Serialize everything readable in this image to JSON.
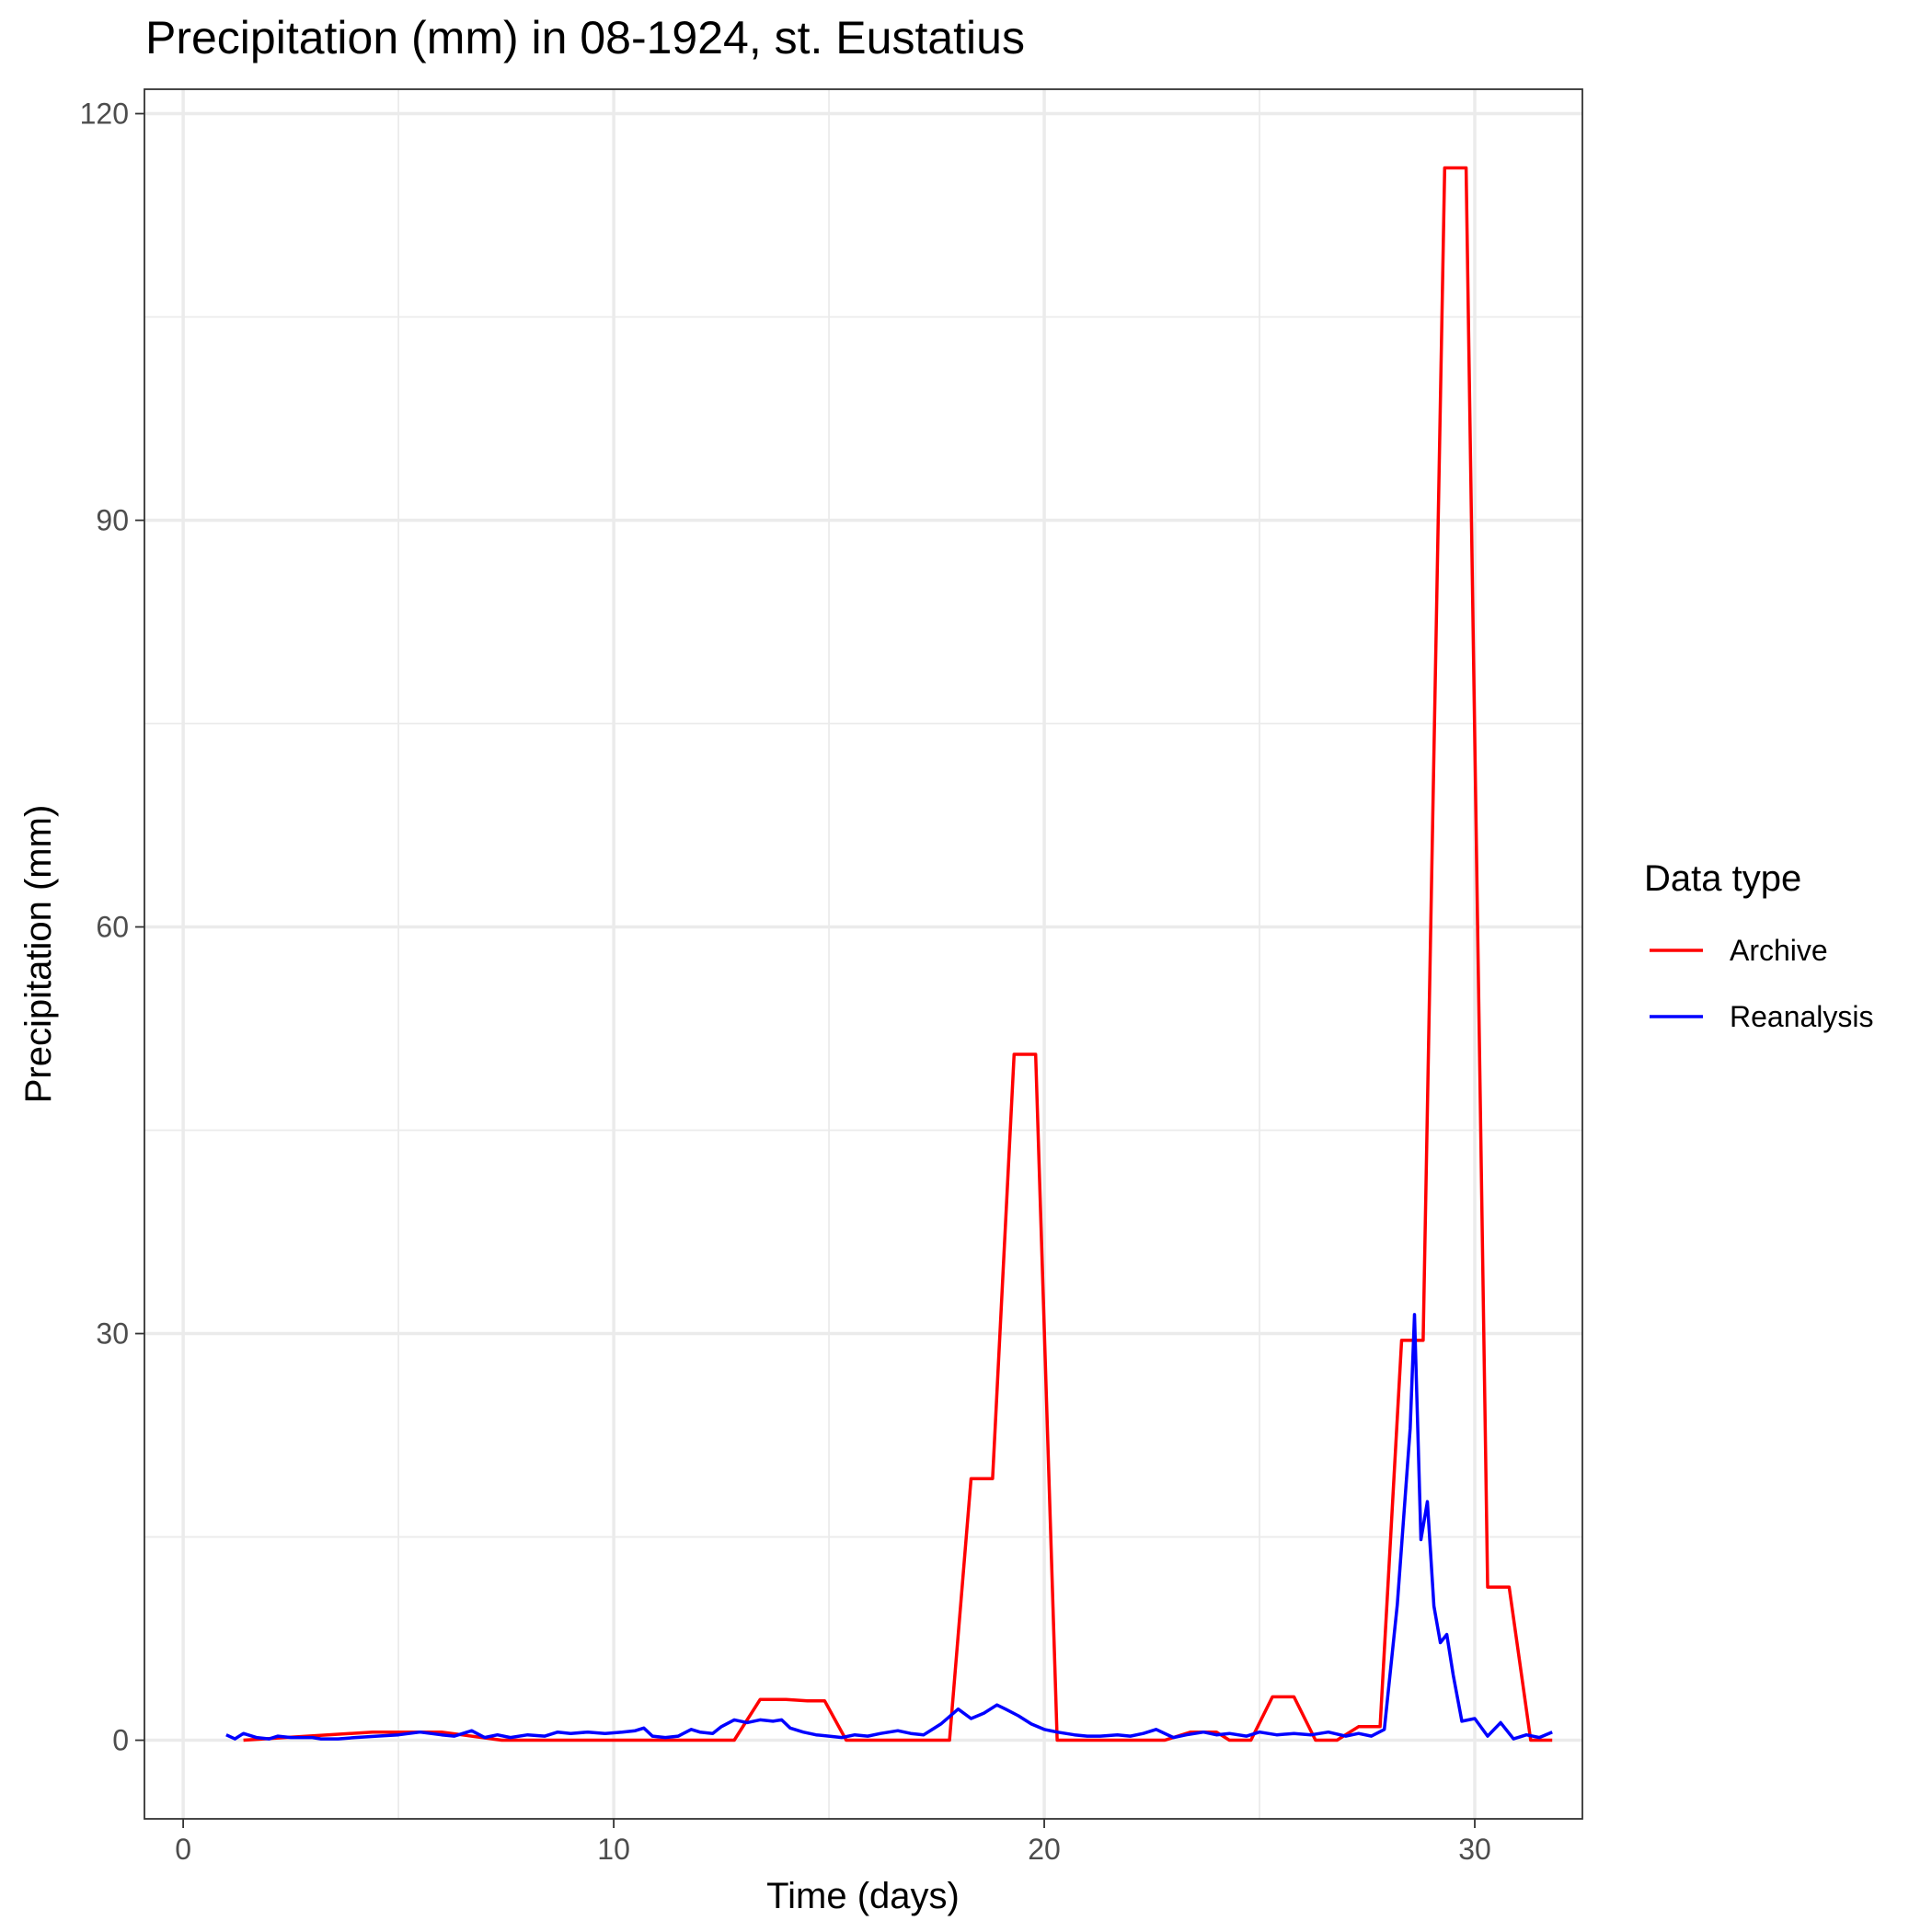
{
  "chart_data": {
    "type": "line",
    "title": "Precipitation (mm) in 08-1924, st. Eustatius",
    "xlabel": "Time (days)",
    "ylabel": "Precipitation (mm)",
    "xlim": [
      -0.9,
      32.5
    ],
    "ylim": [
      -5.8,
      121.8
    ],
    "x_ticks": [
      0,
      10,
      20,
      30
    ],
    "y_ticks": [
      0,
      30,
      60,
      90,
      120
    ],
    "x_tick_labels": [
      "0",
      "10",
      "20",
      "30"
    ],
    "y_tick_labels": [
      "0",
      "30",
      "60",
      "90",
      "120"
    ],
    "grid": true,
    "legend": {
      "title": "Data type",
      "position": "right"
    },
    "series": [
      {
        "name": "Archive",
        "color": "#ff0000",
        "points": [
          [
            1.4,
            0
          ],
          [
            4.4,
            0.6
          ],
          [
            6.0,
            0.6
          ],
          [
            7.4,
            0
          ],
          [
            12.8,
            0
          ],
          [
            13.4,
            3.0
          ],
          [
            14.0,
            3.0
          ],
          [
            14.5,
            2.9
          ],
          [
            14.9,
            2.9
          ],
          [
            15.4,
            0
          ],
          [
            17.8,
            0
          ],
          [
            18.3,
            19.3
          ],
          [
            18.8,
            19.3
          ],
          [
            19.3,
            50.6
          ],
          [
            19.8,
            50.6
          ],
          [
            20.3,
            0
          ],
          [
            22.8,
            0
          ],
          [
            23.4,
            0.6
          ],
          [
            24.0,
            0.6
          ],
          [
            24.3,
            0
          ],
          [
            24.8,
            0
          ],
          [
            25.3,
            3.2
          ],
          [
            25.8,
            3.2
          ],
          [
            26.3,
            0
          ],
          [
            26.8,
            0
          ],
          [
            27.3,
            1.0
          ],
          [
            27.8,
            1.0
          ],
          [
            28.3,
            29.5
          ],
          [
            28.8,
            29.5
          ],
          [
            29.3,
            116.0
          ],
          [
            29.8,
            116.0
          ],
          [
            30.3,
            11.3
          ],
          [
            30.8,
            11.3
          ],
          [
            31.3,
            0
          ],
          [
            31.8,
            0
          ]
        ]
      },
      {
        "name": "Reanalysis",
        "color": "#0000ff",
        "points": [
          [
            1.0,
            0.4
          ],
          [
            1.2,
            0.1
          ],
          [
            1.4,
            0.5
          ],
          [
            1.7,
            0.2
          ],
          [
            2.0,
            0.1
          ],
          [
            2.2,
            0.3
          ],
          [
            2.5,
            0.2
          ],
          [
            3.0,
            0.2
          ],
          [
            3.2,
            0.1
          ],
          [
            3.6,
            0.1
          ],
          [
            4.0,
            0.2
          ],
          [
            4.5,
            0.3
          ],
          [
            5.0,
            0.4
          ],
          [
            5.5,
            0.6
          ],
          [
            6.0,
            0.4
          ],
          [
            6.3,
            0.3
          ],
          [
            6.7,
            0.7
          ],
          [
            7.0,
            0.2
          ],
          [
            7.3,
            0.4
          ],
          [
            7.6,
            0.2
          ],
          [
            8.0,
            0.4
          ],
          [
            8.4,
            0.3
          ],
          [
            8.7,
            0.6
          ],
          [
            9.0,
            0.5
          ],
          [
            9.4,
            0.6
          ],
          [
            9.8,
            0.5
          ],
          [
            10.2,
            0.6
          ],
          [
            10.5,
            0.7
          ],
          [
            10.7,
            0.9
          ],
          [
            10.9,
            0.3
          ],
          [
            11.2,
            0.2
          ],
          [
            11.5,
            0.3
          ],
          [
            11.8,
            0.8
          ],
          [
            12.0,
            0.6
          ],
          [
            12.3,
            0.5
          ],
          [
            12.5,
            1.0
          ],
          [
            12.8,
            1.5
          ],
          [
            13.1,
            1.3
          ],
          [
            13.4,
            1.5
          ],
          [
            13.7,
            1.4
          ],
          [
            13.9,
            1.5
          ],
          [
            14.1,
            0.9
          ],
          [
            14.4,
            0.6
          ],
          [
            14.7,
            0.4
          ],
          [
            15.0,
            0.3
          ],
          [
            15.3,
            0.2
          ],
          [
            15.6,
            0.4
          ],
          [
            15.9,
            0.3
          ],
          [
            16.2,
            0.5
          ],
          [
            16.6,
            0.7
          ],
          [
            16.9,
            0.5
          ],
          [
            17.2,
            0.4
          ],
          [
            17.6,
            1.2
          ],
          [
            18.0,
            2.3
          ],
          [
            18.3,
            1.6
          ],
          [
            18.6,
            2.0
          ],
          [
            18.9,
            2.6
          ],
          [
            19.1,
            2.3
          ],
          [
            19.4,
            1.8
          ],
          [
            19.7,
            1.2
          ],
          [
            20.0,
            0.8
          ],
          [
            20.3,
            0.6
          ],
          [
            20.7,
            0.4
          ],
          [
            21.0,
            0.3
          ],
          [
            21.3,
            0.3
          ],
          [
            21.7,
            0.4
          ],
          [
            22.0,
            0.3
          ],
          [
            22.3,
            0.5
          ],
          [
            22.6,
            0.8
          ],
          [
            23.0,
            0.2
          ],
          [
            23.3,
            0.4
          ],
          [
            23.7,
            0.6
          ],
          [
            24.0,
            0.4
          ],
          [
            24.3,
            0.5
          ],
          [
            24.7,
            0.3
          ],
          [
            25.0,
            0.6
          ],
          [
            25.4,
            0.4
          ],
          [
            25.8,
            0.5
          ],
          [
            26.2,
            0.4
          ],
          [
            26.6,
            0.6
          ],
          [
            27.0,
            0.3
          ],
          [
            27.3,
            0.5
          ],
          [
            27.6,
            0.3
          ],
          [
            27.9,
            0.8
          ],
          [
            28.2,
            10.0
          ],
          [
            28.5,
            23.0
          ],
          [
            28.6,
            31.4
          ],
          [
            28.75,
            14.8
          ],
          [
            28.9,
            17.6
          ],
          [
            29.05,
            9.9
          ],
          [
            29.2,
            7.2
          ],
          [
            29.35,
            7.8
          ],
          [
            29.5,
            4.8
          ],
          [
            29.7,
            1.4
          ],
          [
            30.0,
            1.6
          ],
          [
            30.3,
            0.3
          ],
          [
            30.6,
            1.3
          ],
          [
            30.9,
            0.1
          ],
          [
            31.2,
            0.4
          ],
          [
            31.5,
            0.2
          ],
          [
            31.8,
            0.6
          ]
        ]
      }
    ]
  }
}
